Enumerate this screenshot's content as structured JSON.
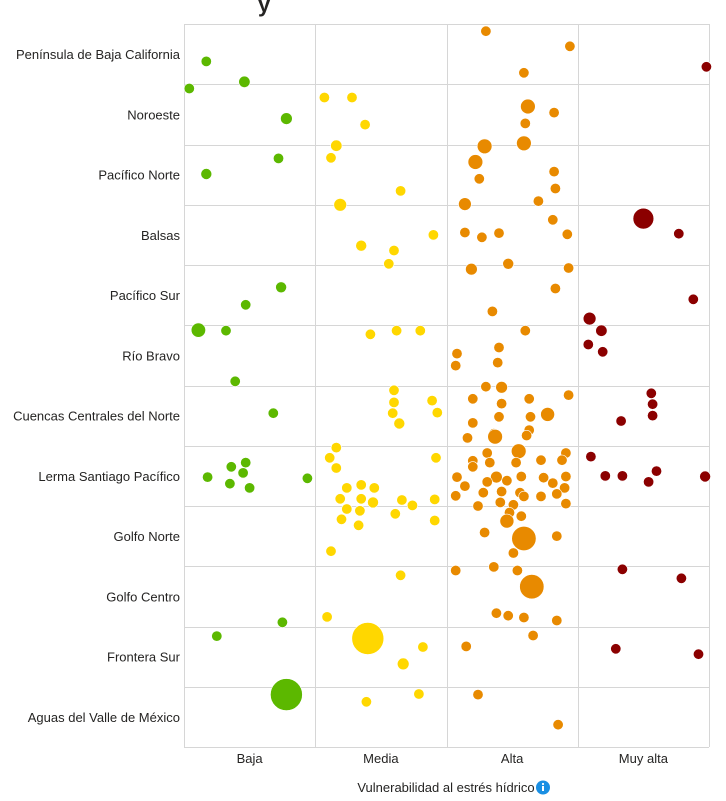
{
  "title_fragment": "y",
  "chart_data": {
    "type": "scatter",
    "subtype": "categorical-bubble-strip",
    "xlabel": "Vulnerabilidad al estrés hídrico",
    "xlabel_icon": "info-icon",
    "categories_x": [
      "Baja",
      "Media",
      "Alta",
      "Muy alta"
    ],
    "categories_y": [
      "Península de Baja California",
      "Noroeste",
      "Pacífico Norte",
      "Balsas",
      "Pacífico Sur",
      "Río Bravo",
      "Cuencas Centrales del Norte",
      "Lerma Santiago Pacífico",
      "Golfo Norte",
      "Golfo Centro",
      "Frontera Sur",
      "Aguas del Valle de México"
    ],
    "colors": {
      "Baja": "#5cb800",
      "Media": "#ffd700",
      "Alta": "#e88a00",
      "Muy alta": "#8b0000"
    },
    "grid": true,
    "legend": "none",
    "note": "x/y are continuous positions in category units (x: 0-4 across Baja..Muy alta, y: 0-12 down across regions); size is relative bubble magnitude",
    "points": [
      {
        "x": 0.17,
        "y": 0.62,
        "s": 1.0
      },
      {
        "x": 0.46,
        "y": 0.96,
        "s": 1.2
      },
      {
        "x": 0.78,
        "y": 1.57,
        "s": 1.3
      },
      {
        "x": 0.72,
        "y": 2.23,
        "s": 1.0
      },
      {
        "x": 0.17,
        "y": 2.49,
        "s": 1.1
      },
      {
        "x": 0.74,
        "y": 4.37,
        "s": 1.1
      },
      {
        "x": 0.47,
        "y": 4.66,
        "s": 1.0
      },
      {
        "x": 0.11,
        "y": 5.08,
        "s": 1.9
      },
      {
        "x": 0.32,
        "y": 5.09,
        "s": 1.0
      },
      {
        "x": 0.39,
        "y": 5.93,
        "s": 1.0
      },
      {
        "x": 0.68,
        "y": 6.46,
        "s": 1.0
      },
      {
        "x": 0.18,
        "y": 7.52,
        "s": 1.0
      },
      {
        "x": 0.36,
        "y": 7.35,
        "s": 1.0
      },
      {
        "x": 0.47,
        "y": 7.28,
        "s": 1.0
      },
      {
        "x": 0.45,
        "y": 7.45,
        "s": 1.0
      },
      {
        "x": 0.35,
        "y": 7.63,
        "s": 1.0
      },
      {
        "x": 0.5,
        "y": 7.7,
        "s": 1.0
      },
      {
        "x": 0.94,
        "y": 7.54,
        "s": 1.0
      },
      {
        "x": 0.04,
        "y": 1.07,
        "s": 1.0
      },
      {
        "x": 0.25,
        "y": 10.16,
        "s": 1.0
      },
      {
        "x": 0.75,
        "y": 9.93,
        "s": 1.0
      },
      {
        "x": 0.78,
        "y": 11.13,
        "s": 9.5
      },
      {
        "x": 1.07,
        "y": 1.22,
        "s": 1.0
      },
      {
        "x": 1.28,
        "y": 1.22,
        "s": 1.0
      },
      {
        "x": 1.38,
        "y": 1.67,
        "s": 1.0
      },
      {
        "x": 1.16,
        "y": 2.02,
        "s": 1.2
      },
      {
        "x": 1.12,
        "y": 2.22,
        "s": 1.0
      },
      {
        "x": 1.65,
        "y": 2.77,
        "s": 1.0
      },
      {
        "x": 1.19,
        "y": 3.0,
        "s": 1.5
      },
      {
        "x": 1.9,
        "y": 3.5,
        "s": 1.0
      },
      {
        "x": 1.35,
        "y": 3.68,
        "s": 1.1
      },
      {
        "x": 1.6,
        "y": 3.76,
        "s": 1.0
      },
      {
        "x": 1.56,
        "y": 3.98,
        "s": 1.0
      },
      {
        "x": 1.42,
        "y": 5.15,
        "s": 1.0
      },
      {
        "x": 1.62,
        "y": 5.09,
        "s": 1.0
      },
      {
        "x": 1.8,
        "y": 5.09,
        "s": 1.0
      },
      {
        "x": 1.6,
        "y": 6.08,
        "s": 1.0
      },
      {
        "x": 1.6,
        "y": 6.28,
        "s": 1.0
      },
      {
        "x": 1.59,
        "y": 6.46,
        "s": 1.0
      },
      {
        "x": 1.64,
        "y": 6.63,
        "s": 1.1
      },
      {
        "x": 1.89,
        "y": 6.25,
        "s": 1.0
      },
      {
        "x": 1.93,
        "y": 6.45,
        "s": 1.0
      },
      {
        "x": 1.16,
        "y": 7.03,
        "s": 1.0
      },
      {
        "x": 1.11,
        "y": 7.2,
        "s": 1.0
      },
      {
        "x": 1.16,
        "y": 7.37,
        "s": 1.0
      },
      {
        "x": 1.92,
        "y": 7.2,
        "s": 1.0
      },
      {
        "x": 1.24,
        "y": 7.7,
        "s": 1.0
      },
      {
        "x": 1.35,
        "y": 7.65,
        "s": 1.0
      },
      {
        "x": 1.45,
        "y": 7.7,
        "s": 1.0
      },
      {
        "x": 1.19,
        "y": 7.88,
        "s": 1.0
      },
      {
        "x": 1.35,
        "y": 7.88,
        "s": 1.0
      },
      {
        "x": 1.44,
        "y": 7.94,
        "s": 1.1
      },
      {
        "x": 1.24,
        "y": 8.05,
        "s": 1.0
      },
      {
        "x": 1.34,
        "y": 8.08,
        "s": 1.0
      },
      {
        "x": 1.2,
        "y": 8.22,
        "s": 1.0
      },
      {
        "x": 1.33,
        "y": 8.32,
        "s": 1.0
      },
      {
        "x": 1.66,
        "y": 7.9,
        "s": 1.0
      },
      {
        "x": 1.74,
        "y": 7.99,
        "s": 1.0
      },
      {
        "x": 1.91,
        "y": 7.89,
        "s": 1.0
      },
      {
        "x": 1.61,
        "y": 8.13,
        "s": 1.0
      },
      {
        "x": 1.91,
        "y": 8.24,
        "s": 1.0
      },
      {
        "x": 1.12,
        "y": 8.75,
        "s": 1.0
      },
      {
        "x": 1.65,
        "y": 9.15,
        "s": 1.0
      },
      {
        "x": 1.09,
        "y": 9.84,
        "s": 1.0
      },
      {
        "x": 1.4,
        "y": 10.2,
        "s": 9.5
      },
      {
        "x": 1.82,
        "y": 10.34,
        "s": 1.0
      },
      {
        "x": 1.67,
        "y": 10.62,
        "s": 1.3
      },
      {
        "x": 1.79,
        "y": 11.12,
        "s": 1.0
      },
      {
        "x": 1.39,
        "y": 11.25,
        "s": 1.0
      },
      {
        "x": 2.3,
        "y": 0.12,
        "s": 1.0
      },
      {
        "x": 2.94,
        "y": 0.37,
        "s": 1.0
      },
      {
        "x": 2.59,
        "y": 0.81,
        "s": 1.0
      },
      {
        "x": 2.62,
        "y": 1.37,
        "s": 2.0
      },
      {
        "x": 2.82,
        "y": 1.47,
        "s": 1.0
      },
      {
        "x": 2.6,
        "y": 1.65,
        "s": 1.0
      },
      {
        "x": 2.29,
        "y": 2.03,
        "s": 2.0
      },
      {
        "x": 2.59,
        "y": 1.98,
        "s": 2.0
      },
      {
        "x": 2.22,
        "y": 2.29,
        "s": 2.0
      },
      {
        "x": 2.25,
        "y": 2.57,
        "s": 1.0
      },
      {
        "x": 2.82,
        "y": 2.45,
        "s": 1.0
      },
      {
        "x": 2.83,
        "y": 2.73,
        "s": 1.0
      },
      {
        "x": 2.14,
        "y": 2.99,
        "s": 1.5
      },
      {
        "x": 2.7,
        "y": 2.94,
        "s": 1.0
      },
      {
        "x": 2.81,
        "y": 3.25,
        "s": 1.0
      },
      {
        "x": 2.14,
        "y": 3.46,
        "s": 1.0
      },
      {
        "x": 2.27,
        "y": 3.54,
        "s": 1.0
      },
      {
        "x": 2.4,
        "y": 3.47,
        "s": 1.0
      },
      {
        "x": 2.92,
        "y": 3.49,
        "s": 1.0
      },
      {
        "x": 2.19,
        "y": 4.07,
        "s": 1.3
      },
      {
        "x": 2.47,
        "y": 3.98,
        "s": 1.1
      },
      {
        "x": 2.93,
        "y": 4.05,
        "s": 1.0
      },
      {
        "x": 2.83,
        "y": 4.39,
        "s": 1.0
      },
      {
        "x": 2.35,
        "y": 4.77,
        "s": 1.0
      },
      {
        "x": 2.6,
        "y": 5.09,
        "s": 1.0
      },
      {
        "x": 2.08,
        "y": 5.47,
        "s": 1.0
      },
      {
        "x": 2.4,
        "y": 5.37,
        "s": 1.0
      },
      {
        "x": 2.07,
        "y": 5.67,
        "s": 1.0
      },
      {
        "x": 2.39,
        "y": 5.62,
        "s": 1.0
      },
      {
        "x": 2.3,
        "y": 6.02,
        "s": 1.0
      },
      {
        "x": 2.42,
        "y": 6.03,
        "s": 1.3
      },
      {
        "x": 2.93,
        "y": 6.16,
        "s": 1.0
      },
      {
        "x": 2.2,
        "y": 6.22,
        "s": 1.0
      },
      {
        "x": 2.42,
        "y": 6.3,
        "s": 1.0
      },
      {
        "x": 2.63,
        "y": 6.22,
        "s": 1.0
      },
      {
        "x": 2.77,
        "y": 6.48,
        "s": 1.8
      },
      {
        "x": 2.4,
        "y": 6.52,
        "s": 1.0
      },
      {
        "x": 2.64,
        "y": 6.52,
        "s": 1.0
      },
      {
        "x": 2.2,
        "y": 6.62,
        "s": 1.0
      },
      {
        "x": 2.63,
        "y": 6.74,
        "s": 1.0
      },
      {
        "x": 2.36,
        "y": 6.8,
        "s": 1.0
      },
      {
        "x": 2.16,
        "y": 6.87,
        "s": 1.0
      },
      {
        "x": 2.37,
        "y": 6.85,
        "s": 2.0
      },
      {
        "x": 2.61,
        "y": 6.83,
        "s": 1.0
      },
      {
        "x": 2.55,
        "y": 7.09,
        "s": 2.0
      },
      {
        "x": 2.31,
        "y": 7.12,
        "s": 1.0
      },
      {
        "x": 2.91,
        "y": 7.12,
        "s": 1.0
      },
      {
        "x": 2.2,
        "y": 7.25,
        "s": 1.0
      },
      {
        "x": 2.33,
        "y": 7.28,
        "s": 1.0
      },
      {
        "x": 2.53,
        "y": 7.28,
        "s": 1.0
      },
      {
        "x": 2.72,
        "y": 7.24,
        "s": 1.0
      },
      {
        "x": 2.88,
        "y": 7.24,
        "s": 1.0
      },
      {
        "x": 2.08,
        "y": 7.52,
        "s": 1.0
      },
      {
        "x": 2.38,
        "y": 7.52,
        "s": 1.3
      },
      {
        "x": 2.57,
        "y": 7.51,
        "s": 1.0
      },
      {
        "x": 2.74,
        "y": 7.53,
        "s": 1.0
      },
      {
        "x": 2.91,
        "y": 7.51,
        "s": 1.0
      },
      {
        "x": 2.2,
        "y": 7.35,
        "s": 1.0
      },
      {
        "x": 2.14,
        "y": 7.67,
        "s": 1.0
      },
      {
        "x": 2.31,
        "y": 7.6,
        "s": 1.0
      },
      {
        "x": 2.46,
        "y": 7.58,
        "s": 1.0
      },
      {
        "x": 2.81,
        "y": 7.62,
        "s": 1.0
      },
      {
        "x": 2.9,
        "y": 7.7,
        "s": 1.0
      },
      {
        "x": 2.07,
        "y": 7.83,
        "s": 1.0
      },
      {
        "x": 2.28,
        "y": 7.78,
        "s": 1.0
      },
      {
        "x": 2.42,
        "y": 7.76,
        "s": 1.0
      },
      {
        "x": 2.56,
        "y": 7.78,
        "s": 1.0
      },
      {
        "x": 2.72,
        "y": 7.84,
        "s": 1.0
      },
      {
        "x": 2.84,
        "y": 7.8,
        "s": 1.0
      },
      {
        "x": 2.41,
        "y": 7.94,
        "s": 1.0
      },
      {
        "x": 2.59,
        "y": 7.84,
        "s": 1.0
      },
      {
        "x": 2.51,
        "y": 7.98,
        "s": 1.0
      },
      {
        "x": 2.91,
        "y": 7.96,
        "s": 1.0
      },
      {
        "x": 2.24,
        "y": 8.0,
        "s": 1.0
      },
      {
        "x": 2.48,
        "y": 8.11,
        "s": 1.0
      },
      {
        "x": 2.57,
        "y": 8.17,
        "s": 1.0
      },
      {
        "x": 2.46,
        "y": 8.25,
        "s": 1.8
      },
      {
        "x": 2.29,
        "y": 8.44,
        "s": 1.0
      },
      {
        "x": 2.59,
        "y": 8.54,
        "s": 5.5
      },
      {
        "x": 2.84,
        "y": 8.5,
        "s": 1.0
      },
      {
        "x": 2.51,
        "y": 8.78,
        "s": 1.0
      },
      {
        "x": 2.07,
        "y": 9.07,
        "s": 1.0
      },
      {
        "x": 2.36,
        "y": 9.01,
        "s": 1.0
      },
      {
        "x": 2.54,
        "y": 9.07,
        "s": 1.0
      },
      {
        "x": 2.65,
        "y": 9.34,
        "s": 5.5
      },
      {
        "x": 2.38,
        "y": 9.78,
        "s": 1.0
      },
      {
        "x": 2.47,
        "y": 9.82,
        "s": 1.0
      },
      {
        "x": 2.59,
        "y": 9.85,
        "s": 1.0
      },
      {
        "x": 2.84,
        "y": 9.9,
        "s": 1.0
      },
      {
        "x": 2.66,
        "y": 10.15,
        "s": 1.0
      },
      {
        "x": 2.15,
        "y": 10.33,
        "s": 1.0
      },
      {
        "x": 2.24,
        "y": 11.13,
        "s": 1.0
      },
      {
        "x": 2.85,
        "y": 11.63,
        "s": 1.0
      },
      {
        "x": 3.98,
        "y": 0.71,
        "s": 1.0
      },
      {
        "x": 3.5,
        "y": 3.23,
        "s": 4.0
      },
      {
        "x": 3.77,
        "y": 3.48,
        "s": 1.0
      },
      {
        "x": 3.88,
        "y": 4.57,
        "s": 1.0
      },
      {
        "x": 3.09,
        "y": 4.89,
        "s": 1.5
      },
      {
        "x": 3.18,
        "y": 5.09,
        "s": 1.2
      },
      {
        "x": 3.08,
        "y": 5.32,
        "s": 1.0
      },
      {
        "x": 3.19,
        "y": 5.44,
        "s": 1.0
      },
      {
        "x": 3.56,
        "y": 6.13,
        "s": 1.0
      },
      {
        "x": 3.57,
        "y": 6.31,
        "s": 1.0
      },
      {
        "x": 3.57,
        "y": 6.5,
        "s": 1.0
      },
      {
        "x": 3.33,
        "y": 6.59,
        "s": 1.0
      },
      {
        "x": 3.1,
        "y": 7.18,
        "s": 1.0
      },
      {
        "x": 3.21,
        "y": 7.5,
        "s": 1.0
      },
      {
        "x": 3.34,
        "y": 7.5,
        "s": 1.0
      },
      {
        "x": 3.54,
        "y": 7.6,
        "s": 1.0
      },
      {
        "x": 3.6,
        "y": 7.42,
        "s": 1.0
      },
      {
        "x": 3.97,
        "y": 7.51,
        "s": 1.1
      },
      {
        "x": 3.34,
        "y": 9.05,
        "s": 1.0
      },
      {
        "x": 3.79,
        "y": 9.2,
        "s": 1.0
      },
      {
        "x": 3.29,
        "y": 10.37,
        "s": 1.0
      },
      {
        "x": 3.92,
        "y": 10.46,
        "s": 1.0
      }
    ]
  }
}
